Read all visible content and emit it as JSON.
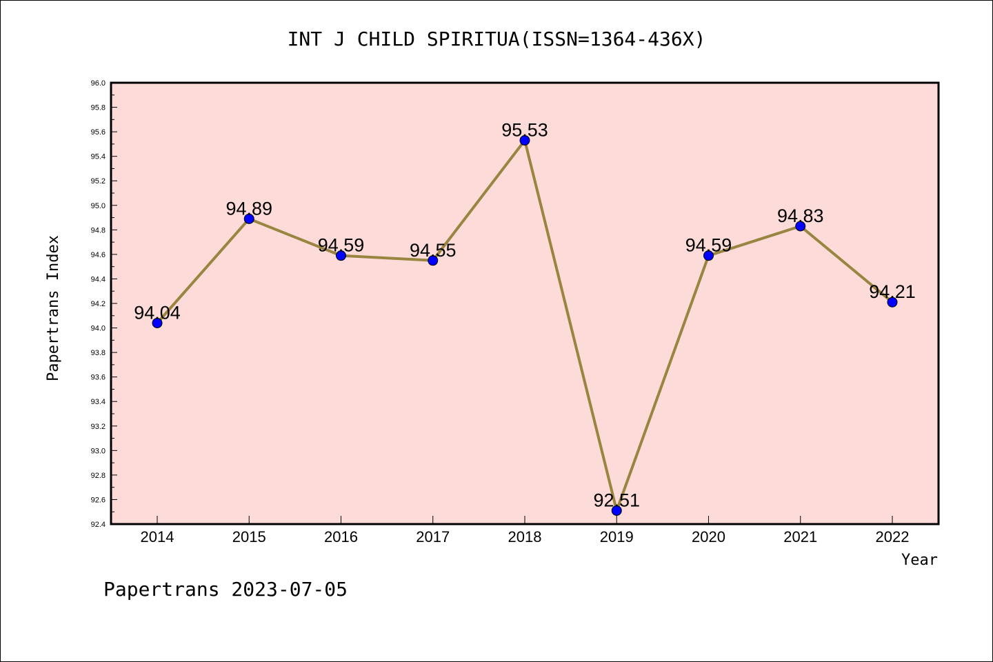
{
  "chart_data": {
    "type": "line",
    "title": "INT J CHILD SPIRITUA(ISSN=1364-436X)",
    "xlabel": "Year",
    "ylabel": "Papertrans Index",
    "categories": [
      "2014",
      "2015",
      "2016",
      "2017",
      "2018",
      "2019",
      "2020",
      "2021",
      "2022"
    ],
    "values": [
      94.04,
      94.89,
      94.59,
      94.55,
      95.53,
      92.51,
      94.59,
      94.83,
      94.21
    ],
    "data_labels": [
      "94.04",
      "94.89",
      "94.59",
      "94.55",
      "95.53",
      "92.51",
      "94.59",
      "94.83",
      "94.21"
    ],
    "ylim": [
      92.4,
      96.0
    ],
    "yticks": [
      "92.4",
      "92.6",
      "92.8",
      "93.0",
      "93.2",
      "93.4",
      "93.6",
      "93.8",
      "94.0",
      "94.2",
      "94.4",
      "94.6",
      "94.8",
      "95.0",
      "95.2",
      "95.4",
      "95.6",
      "95.8",
      "96.0"
    ],
    "grid": false,
    "colors": {
      "plot_background": "#fddbd8",
      "line": "#9a8540",
      "marker": "#0000ff"
    }
  },
  "footer": "Papertrans 2023-07-05"
}
